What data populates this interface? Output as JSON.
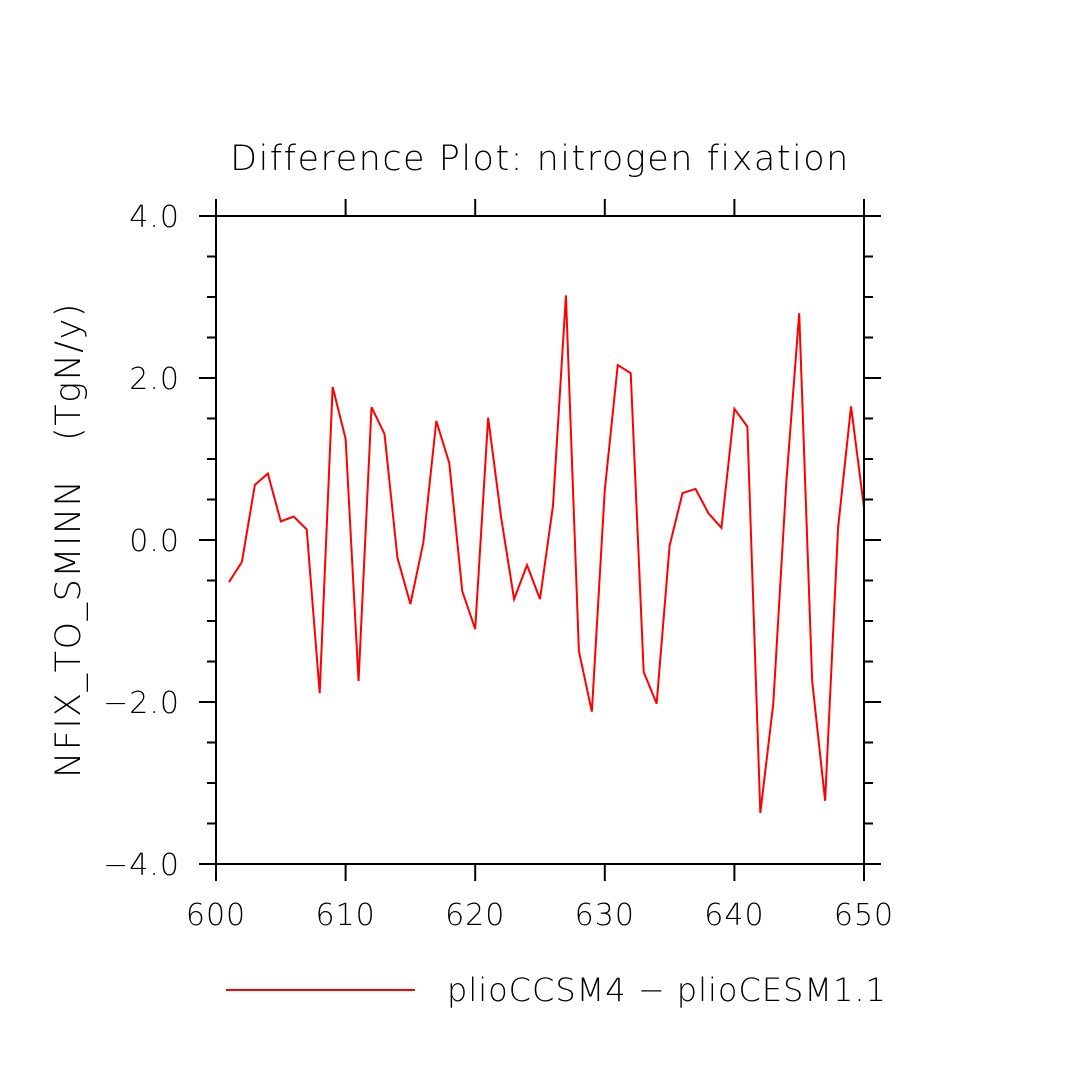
{
  "chart_data": {
    "type": "line",
    "title": "Difference Plot: nitrogen fixation",
    "xlabel": "",
    "ylabel": "NFIX_TO_SMINN   (TgN/y)",
    "xlim": [
      600,
      650
    ],
    "ylim": [
      -4.0,
      4.0
    ],
    "x_ticks": [
      600,
      610,
      620,
      630,
      640,
      650
    ],
    "x_tick_labels": [
      "600",
      "610",
      "620",
      "630",
      "640",
      "650"
    ],
    "y_ticks": [
      -4.0,
      -2.0,
      0.0,
      2.0,
      4.0
    ],
    "y_tick_labels": [
      "−4.0",
      "−2.0",
      "0.0",
      "2.0",
      "4.0"
    ],
    "x_minor_step": 5,
    "y_minor_step": 0.5,
    "grid": false,
    "legend_position": "bottom-center",
    "series": [
      {
        "name": "plioCCSM4 − plioCESM1.1",
        "color": "#ff0000",
        "x": [
          601,
          602,
          603,
          604,
          605,
          606,
          607,
          608,
          609,
          610,
          611,
          612,
          613,
          614,
          615,
          616,
          617,
          618,
          619,
          620,
          621,
          622,
          623,
          624,
          625,
          626,
          627,
          628,
          629,
          630,
          631,
          632,
          633,
          634,
          635,
          636,
          637,
          638,
          639,
          640,
          641,
          642,
          643,
          644,
          645,
          646,
          647,
          648,
          649,
          650
        ],
        "y": [
          -0.52,
          -0.27,
          0.68,
          0.82,
          0.23,
          0.29,
          0.13,
          -1.89,
          1.89,
          1.25,
          -1.74,
          1.64,
          1.31,
          -0.22,
          -0.79,
          -0.03,
          1.47,
          0.95,
          -0.63,
          -1.1,
          1.51,
          0.28,
          -0.73,
          -0.31,
          -0.73,
          0.42,
          3.02,
          -1.37,
          -2.12,
          0.62,
          2.16,
          2.06,
          -1.63,
          -2.02,
          -0.07,
          0.58,
          0.63,
          0.33,
          0.15,
          1.62,
          1.4,
          -3.37,
          -2.02,
          0.7,
          2.8,
          -1.74,
          -3.22,
          0.15,
          1.65,
          0.4
        ]
      }
    ]
  }
}
